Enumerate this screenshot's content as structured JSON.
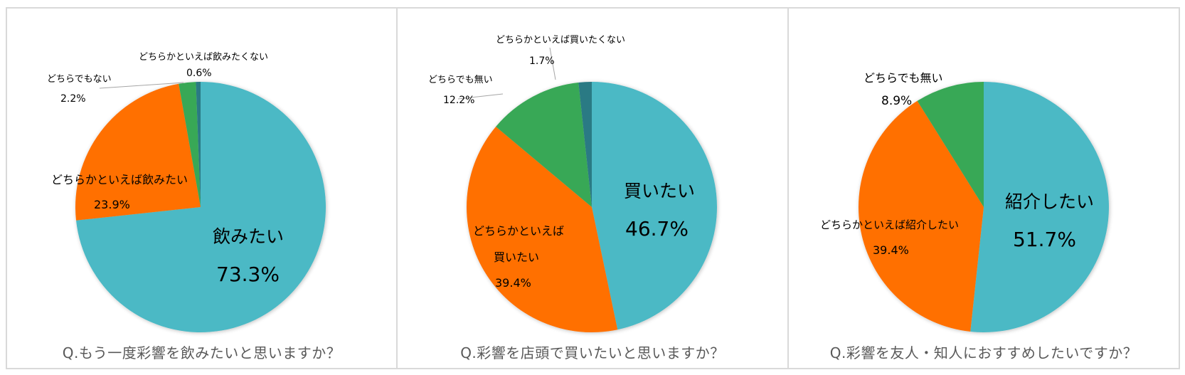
{
  "colors": {
    "teal": "#4BB9C5",
    "orange": "#FF6F00",
    "green": "#38A856",
    "dark_teal": "#2B7A84",
    "border": "#D9D9D9",
    "caption": "#595959"
  },
  "chart_data": [
    {
      "type": "pie",
      "title": "Q.もう一度彩響を飲みたいと思いますか？",
      "categories": [
        "飲みたい",
        "どちらかといえば飲みたい",
        "どちらでもない",
        "どちらかといえば飲みたくない"
      ],
      "values": [
        73.3,
        23.9,
        2.2,
        0.6
      ],
      "value_labels": [
        "73.3%",
        "23.9%",
        "2.2%",
        "0.6%"
      ],
      "colors": [
        "#4BB9C5",
        "#FF6F00",
        "#38A856",
        "#2B7A84"
      ],
      "start_angle": "12 o'clock, clockwise",
      "legend": "none (data labels)"
    },
    {
      "type": "pie",
      "title": "Q.彩響を店頭で買いたいと思いますか？",
      "categories": [
        "買いたい",
        "どちらかといえば買いたい",
        "どちらでも無い",
        "どちらかといえば買いたくない"
      ],
      "values": [
        46.7,
        39.4,
        12.2,
        1.7
      ],
      "value_labels": [
        "46.7%",
        "39.4%",
        "12.2%",
        "1.7%"
      ],
      "colors": [
        "#4BB9C5",
        "#FF6F00",
        "#38A856",
        "#2B7A84"
      ],
      "start_angle": "12 o'clock, clockwise",
      "legend": "none (data labels)"
    },
    {
      "type": "pie",
      "title": "Q.彩響を友人・知人におすすめしたいですか？",
      "categories": [
        "紹介したい",
        "どちらかといえば紹介したい",
        "どちらでも無い"
      ],
      "values": [
        51.7,
        39.4,
        8.9
      ],
      "value_labels": [
        "51.7%",
        "39.4%",
        "8.9%"
      ],
      "colors": [
        "#4BB9C5",
        "#FF6F00",
        "#38A856"
      ],
      "start_angle": "12 o'clock, clockwise",
      "legend": "none (data labels)"
    }
  ],
  "charts": [
    {
      "caption": "Q.もう一度彩響を飲みたいと思いますか？",
      "labels": {
        "main_name": "飲みたい",
        "main_value": "73.3%",
        "second_name": "どちらかといえば飲みたい",
        "second_value": "23.9%",
        "third_name": "どちらでもない",
        "third_value": "2.2%",
        "fourth_name": "どちらかといえば飲みたくない",
        "fourth_value": "0.6%"
      }
    },
    {
      "caption": "Q.彩響を店頭で買いたいと思いますか？",
      "labels": {
        "main_name": "買いたい",
        "main_value": "46.7%",
        "second_name_line1": "どちらかといえば",
        "second_name_line2": "買いたい",
        "second_value": "39.4%",
        "third_name": "どちらでも無い",
        "third_value": "12.2%",
        "fourth_name": "どちらかといえば買いたくない",
        "fourth_value": "1.7%"
      }
    },
    {
      "caption": "Q.彩響を友人・知人におすすめしたいですか？",
      "labels": {
        "main_name": "紹介したい",
        "main_value": "51.7%",
        "second_name": "どちらかといえば紹介したい",
        "second_value": "39.4%",
        "third_name": "どちらでも無い",
        "third_value": "8.9%"
      }
    }
  ]
}
